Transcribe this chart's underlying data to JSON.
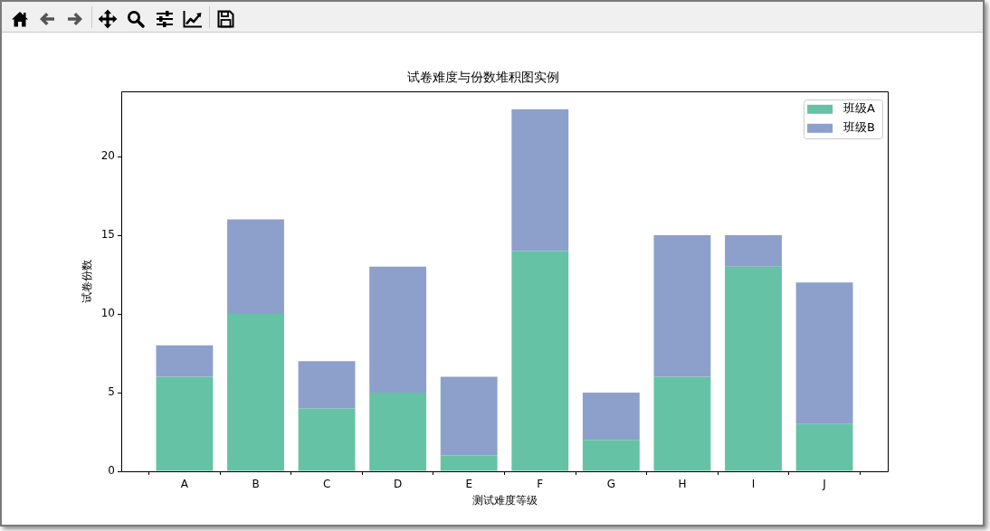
{
  "chart_data": {
    "type": "bar",
    "title": "试卷难度与份数堆积图实例",
    "xlabel": "测试难度等级",
    "ylabel": "试卷份数",
    "categories": [
      "A",
      "B",
      "C",
      "D",
      "E",
      "F",
      "G",
      "H",
      "I",
      "J"
    ],
    "series": [
      {
        "name": "班级A",
        "color": "#66c2a5",
        "values": [
          6,
          10,
          4,
          5,
          1,
          14,
          2,
          6,
          13,
          3
        ]
      },
      {
        "name": "班级B",
        "color": "#8da0cb",
        "values": [
          2,
          6,
          3,
          8,
          5,
          9,
          3,
          9,
          2,
          9
        ]
      }
    ],
    "stacked": true,
    "ylim": [
      0,
      24.15
    ],
    "yticks": [
      0,
      5,
      10,
      15,
      20
    ],
    "grid": false,
    "legend": "top right"
  }
}
